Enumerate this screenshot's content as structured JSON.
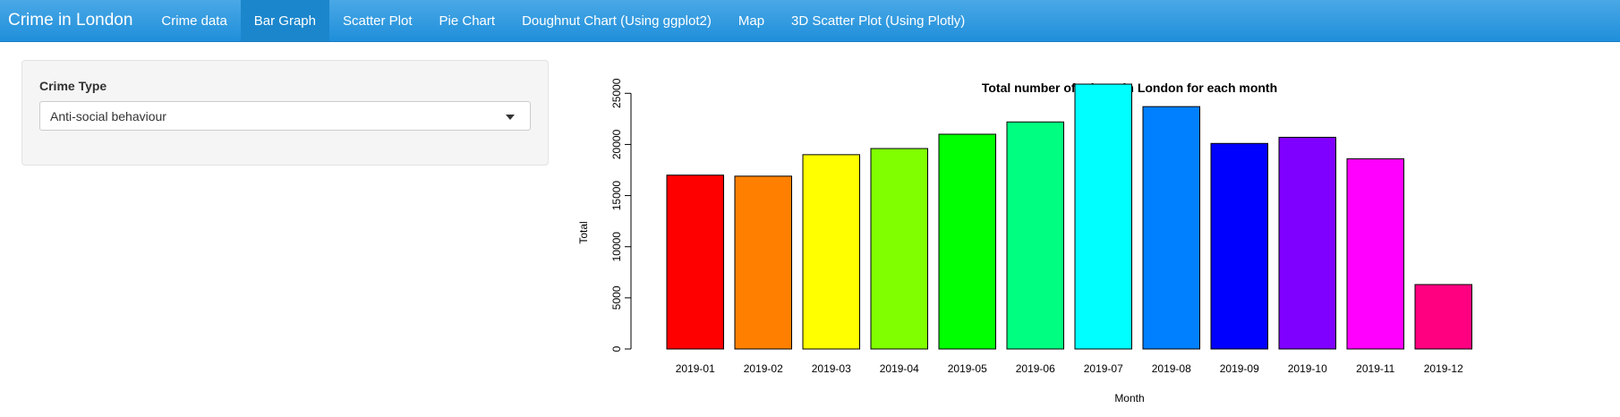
{
  "navbar": {
    "brand": "Crime in London",
    "tabs": [
      {
        "label": "Crime data",
        "active": false
      },
      {
        "label": "Bar Graph",
        "active": true
      },
      {
        "label": "Scatter Plot",
        "active": false
      },
      {
        "label": "Pie Chart",
        "active": false
      },
      {
        "label": "Doughnut Chart (Using ggplot2)",
        "active": false
      },
      {
        "label": "Map",
        "active": false
      },
      {
        "label": "3D Scatter Plot (Using Plotly)",
        "active": false
      }
    ]
  },
  "sidebar": {
    "label": "Crime Type",
    "selected": "Anti-social behaviour"
  },
  "chart_data": {
    "type": "bar",
    "title": "Total number of crimes in London for each month",
    "xlabel": "Month",
    "ylabel": "Total",
    "categories": [
      "2019-01",
      "2019-02",
      "2019-03",
      "2019-04",
      "2019-05",
      "2019-06",
      "2019-07",
      "2019-08",
      "2019-09",
      "2019-10",
      "2019-11",
      "2019-12"
    ],
    "values": [
      17000,
      16900,
      19000,
      19600,
      21000,
      22200,
      25900,
      23700,
      20100,
      20700,
      18600,
      6300
    ],
    "colors": [
      "#FF0000",
      "#FF8000",
      "#FFFF00",
      "#80FF00",
      "#00FF00",
      "#00FF80",
      "#00FFFF",
      "#0080FF",
      "#0000FF",
      "#8000FF",
      "#FF00FF",
      "#FF0080"
    ],
    "yticks": [
      "0",
      "5000",
      "10000",
      "15000",
      "20000",
      "25000"
    ],
    "ylim": [
      0,
      26600
    ],
    "grid": false
  }
}
